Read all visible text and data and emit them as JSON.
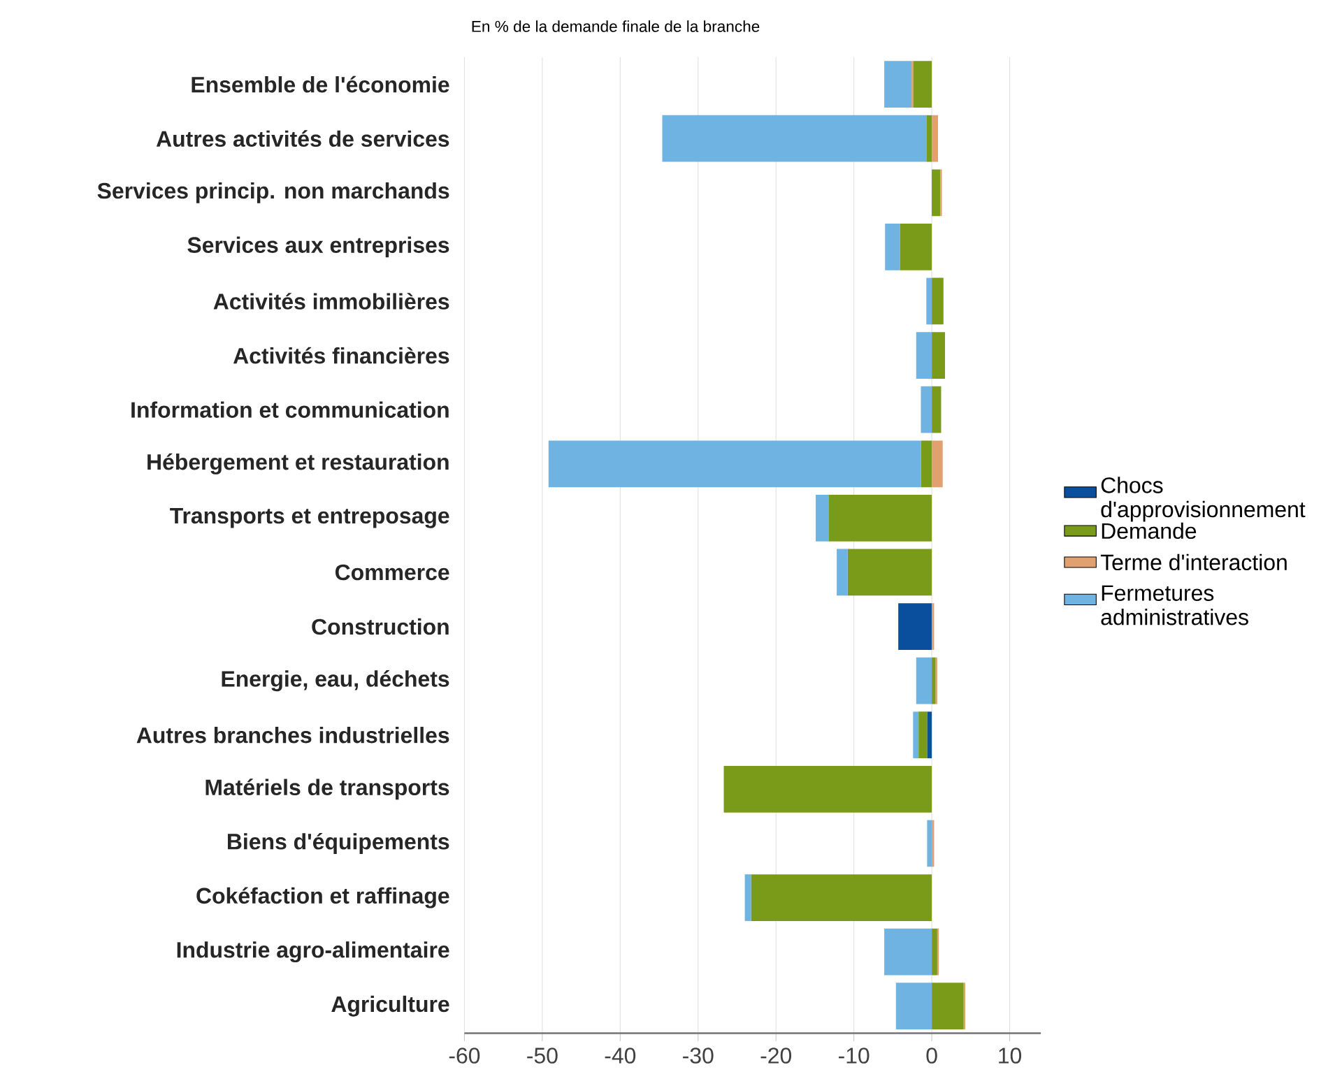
{
  "chart_data": {
    "type": "bar",
    "orientation": "horizontal",
    "stacked": true,
    "title": "En % de la demande finale de la branche",
    "categories": [
      "Ensemble de l'économie",
      "Autres activités de services",
      "Services princip. non marchands",
      "Services aux entreprises",
      "Activités immobilières",
      "Activités financières",
      "Information et communication",
      "Hébergement et restauration",
      "Transports et entreposage",
      "Commerce",
      "Construction",
      "Energie, eau, déchets",
      "Autres branches industrielles",
      "Matériels de transports",
      "Biens d'équipements",
      "Cokéfaction et raffinage",
      "Industrie agro-alimentaire",
      "Agriculture"
    ],
    "series": [
      {
        "name": "Chocs d'approvisionnement",
        "color": "#0a4f9e",
        "values": [
          null,
          null,
          null,
          null,
          null,
          null,
          null,
          null,
          null,
          null,
          -4.3,
          null,
          -0.6,
          null,
          null,
          null,
          null,
          null
        ]
      },
      {
        "name": "Demande",
        "color": "#7a9a1a",
        "values": [
          -2.4,
          -0.7,
          1.1,
          -4.1,
          1.5,
          1.7,
          1.2,
          -1.4,
          -13.2,
          -10.8,
          null,
          0.5,
          -1.1,
          -26.7,
          null,
          -23.2,
          0.7,
          4.1
        ]
      },
      {
        "name": "Terme d'interaction",
        "color": "#e0a070",
        "values": [
          -0.2,
          0.8,
          0.2,
          null,
          null,
          null,
          null,
          1.4,
          null,
          null,
          0.3,
          0.2,
          null,
          null,
          0.3,
          null,
          0.2,
          0.2
        ]
      },
      {
        "name": "Fermetures administratives",
        "color": "#6fb3e3",
        "values": [
          -3.5,
          -33.9,
          null,
          -1.9,
          -0.7,
          -2.0,
          -1.4,
          -47.8,
          -1.7,
          -1.4,
          null,
          -2.0,
          -0.7,
          null,
          -0.6,
          -0.8,
          -6.1,
          -4.6
        ]
      }
    ],
    "xlim": [
      -60,
      14
    ],
    "xticks": [
      -60,
      -50,
      -40,
      -30,
      -20,
      -10,
      0,
      10
    ],
    "grid": "x",
    "legend": "right"
  }
}
